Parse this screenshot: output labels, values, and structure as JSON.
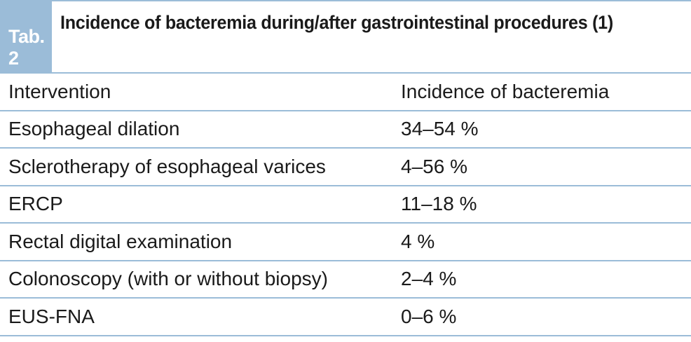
{
  "table": {
    "tab_label": "Tab. 2",
    "title": "Incidence of bacteremia during/after gastrointestinal procedures (1)",
    "columns": [
      "Intervention",
      "Incidence of bacteremia"
    ],
    "rows": [
      [
        "Esophageal dilation",
        "34–54 %"
      ],
      [
        "Sclerotherapy of esophageal varices",
        "4–56 %"
      ],
      [
        "ERCP",
        "11–18 %"
      ],
      [
        "Rectal digital examination",
        "4 %"
      ],
      [
        "Colonoscopy (with or without biopsy)",
        "2–4 %"
      ],
      [
        "EUS-FNA",
        "0–6 %"
      ]
    ],
    "colors": {
      "accent": "#9bbcd8",
      "text": "#1a1a1a",
      "label_text": "#ffffff"
    }
  }
}
